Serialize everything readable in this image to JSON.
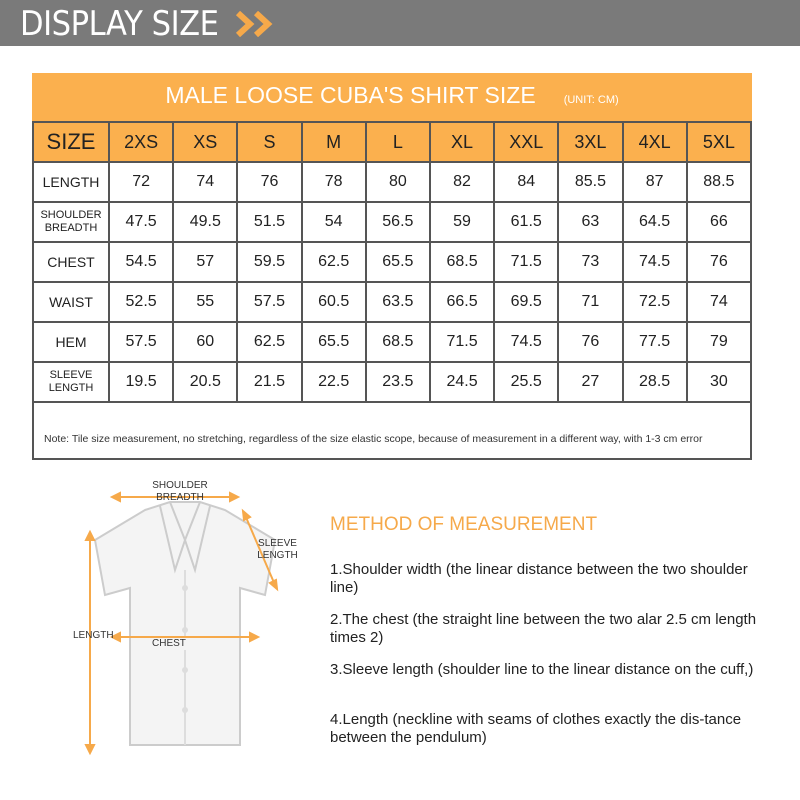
{
  "header": {
    "title": "DISPLAY SIZE",
    "accent": "#f6a94a"
  },
  "table": {
    "title": "MALE LOOSE CUBA'S SHIRT  SIZE",
    "unit": "(UNIT: CM)",
    "columns": [
      "SIZE",
      "2XS",
      "XS",
      "S",
      "M",
      "L",
      "XL",
      "XXL",
      "3XL",
      "4XL",
      "5XL"
    ],
    "rows": [
      {
        "label": "LENGTH",
        "values": [
          "72",
          "74",
          "76",
          "78",
          "80",
          "82",
          "84",
          "85.5",
          "87",
          "88.5"
        ]
      },
      {
        "label": "SHOULDER BREADTH",
        "values": [
          "47.5",
          "49.5",
          "51.5",
          "54",
          "56.5",
          "59",
          "61.5",
          "63",
          "64.5",
          "66"
        ]
      },
      {
        "label": "CHEST",
        "values": [
          "54.5",
          "57",
          "59.5",
          "62.5",
          "65.5",
          "68.5",
          "71.5",
          "73",
          "74.5",
          "76"
        ]
      },
      {
        "label": "WAIST",
        "values": [
          "52.5",
          "55",
          "57.5",
          "60.5",
          "63.5",
          "66.5",
          "69.5",
          "71",
          "72.5",
          "74"
        ]
      },
      {
        "label": "HEM",
        "values": [
          "57.5",
          "60",
          "62.5",
          "65.5",
          "68.5",
          "71.5",
          "74.5",
          "76",
          "77.5",
          "79"
        ]
      },
      {
        "label": "SLEEVE LENGTH",
        "values": [
          "19.5",
          "20.5",
          "21.5",
          "22.5",
          "23.5",
          "24.5",
          "25.5",
          "27",
          "28.5",
          "30"
        ]
      }
    ],
    "note": "Note: Tile size measurement, no stretching, regardless of the size elastic scope, because of measurement in a different way, with 1-3 cm error",
    "header_color": "#fbb04e"
  },
  "diagram": {
    "shoulder": "SHOULDER BREADTH",
    "sleeve": "SLEEVE LENGTH",
    "length": "LENGTH",
    "chest": "CHEST"
  },
  "method": {
    "title": "METHOD OF MEASUREMENT",
    "items": [
      "1.Shoulder width (the linear distance between the two shoulder line)",
      "2.The chest (the straight line between the two alar 2.5 cm length times 2)",
      "3.Sleeve length (shoulder line to the linear distance  on the cuff,)",
      "4.Length (neckline with seams of clothes exactly the dis-tance between the pendulum)"
    ]
  }
}
